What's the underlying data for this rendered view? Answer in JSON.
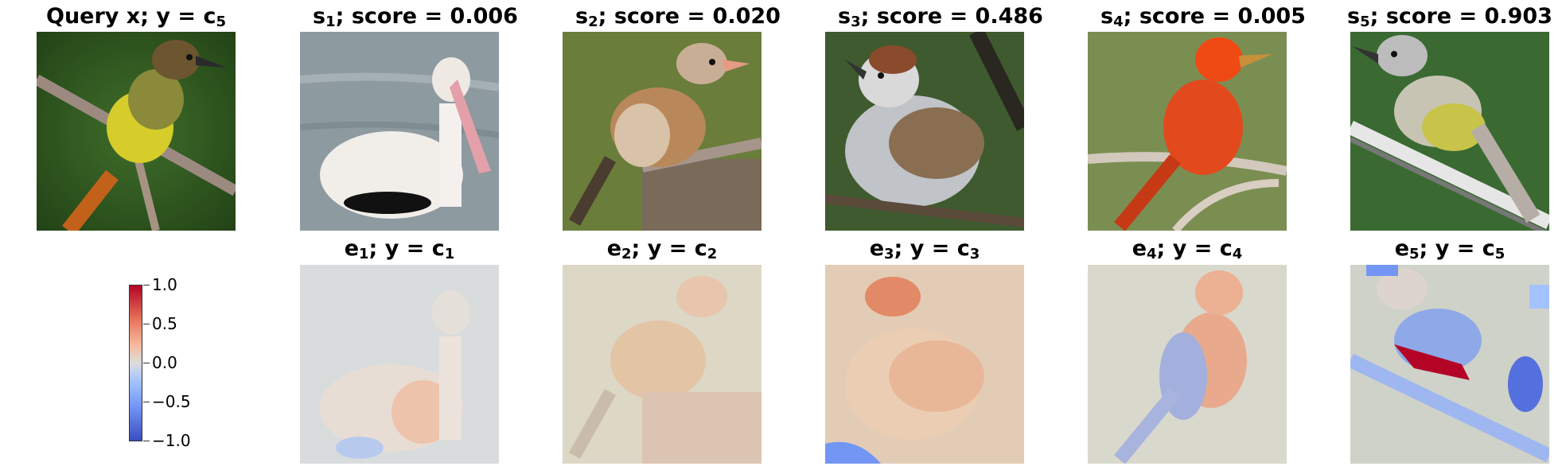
{
  "query": {
    "title": "Query x; y = c",
    "sub": "5"
  },
  "top": [
    {
      "title_pre": "s",
      "sub": "1",
      "title_post": "; score = 0.006"
    },
    {
      "title_pre": "s",
      "sub": "2",
      "title_post": "; score = 0.020"
    },
    {
      "title_pre": "s",
      "sub": "3",
      "title_post": "; score = 0.486"
    },
    {
      "title_pre": "s",
      "sub": "4",
      "title_post": "; score = 0.005"
    },
    {
      "title_pre": "s",
      "sub": "5",
      "title_post": "; score = 0.903"
    }
  ],
  "bottom": [
    {
      "title_pre": "e",
      "sub": "1",
      "title_mid": "; y = c",
      "sub2": "1"
    },
    {
      "title_pre": "e",
      "sub": "2",
      "title_mid": "; y = c",
      "sub2": "2"
    },
    {
      "title_pre": "e",
      "sub": "3",
      "title_mid": "; y = c",
      "sub2": "3"
    },
    {
      "title_pre": "e",
      "sub": "4",
      "title_mid": "; y = c",
      "sub2": "4"
    },
    {
      "title_pre": "e",
      "sub": "5",
      "title_mid": "; y = c",
      "sub2": "5"
    }
  ],
  "colorbar": {
    "ticks": [
      "1.0",
      "0.5",
      "0.0",
      "−0.5",
      "−1.0"
    ],
    "colormap": "coolwarm",
    "min_color": "#3b4cc0",
    "max_color": "#b40426"
  }
}
